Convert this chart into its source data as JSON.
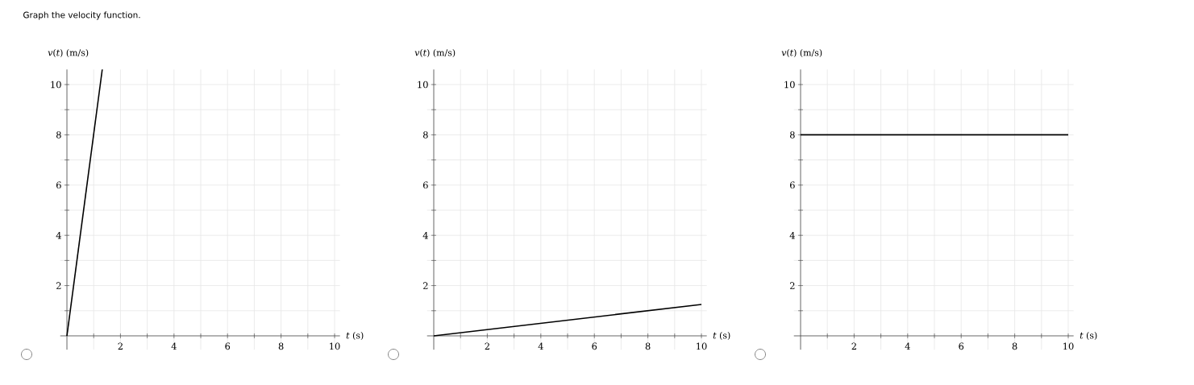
{
  "chart_data": [
    {
      "type": "line",
      "title": "Graph the velocity function.",
      "xlabel": "*t* (s)",
      "ylabel": "*v*(*t*) (m/s)",
      "x": [
        0,
        1.32
      ],
      "values": [
        0,
        10.6
      ],
      "color": "#000000",
      "xlim": [
        -0.25,
        10.2
      ],
      "ylim": [
        -0.55,
        10.6
      ],
      "xticks": [
        {
          "value": 1,
          "label": null
        },
        2,
        {
          "value": 3,
          "label": null
        },
        4,
        {
          "value": 5,
          "label": null
        },
        6,
        {
          "value": 7,
          "label": null
        },
        8,
        {
          "value": 9,
          "label": null
        },
        10
      ],
      "yticks": [
        {
          "value": 1,
          "label": null
        },
        2,
        {
          "value": 3,
          "label": null
        },
        4,
        {
          "value": 5,
          "label": null
        },
        6,
        {
          "value": 7,
          "label": null
        },
        8,
        {
          "value": 9,
          "label": null
        },
        10
      ],
      "grid": true
    },
    {
      "type": "line",
      "xlabel": "*t* (s)",
      "ylabel": "*v*(*t*) (m/s)",
      "x": [
        0,
        10
      ],
      "values": [
        0,
        1.25
      ],
      "color": "#000000",
      "xlim": [
        -0.25,
        10.2
      ],
      "ylim": [
        -0.55,
        10.6
      ],
      "xticks": [
        {
          "value": 1,
          "label": null
        },
        2,
        {
          "value": 3,
          "label": null
        },
        4,
        {
          "value": 5,
          "label": null
        },
        6,
        {
          "value": 7,
          "label": null
        },
        8,
        {
          "value": 9,
          "label": null
        },
        10
      ],
      "yticks": [
        {
          "value": 1,
          "label": null
        },
        2,
        {
          "value": 3,
          "label": null
        },
        4,
        {
          "value": 5,
          "label": null
        },
        6,
        {
          "value": 7,
          "label": null
        },
        8,
        {
          "value": 9,
          "label": null
        },
        10
      ],
      "grid": true
    },
    {
      "type": "line",
      "xlabel": "*t* (s)",
      "ylabel": "*v*(*t*) (m/s)",
      "x": [
        0,
        10
      ],
      "values": [
        8,
        8
      ],
      "color": "#000000",
      "xlim": [
        -0.25,
        10.2
      ],
      "ylim": [
        -0.55,
        10.6
      ],
      "xticks": [
        {
          "value": 1,
          "label": null
        },
        2,
        {
          "value": 3,
          "label": null
        },
        4,
        {
          "value": 5,
          "label": null
        },
        6,
        {
          "value": 7,
          "label": null
        },
        8,
        {
          "value": 9,
          "label": null
        },
        10
      ],
      "yticks": [
        {
          "value": 1,
          "label": null
        },
        2,
        {
          "value": 3,
          "label": null
        },
        4,
        {
          "value": 5,
          "label": null
        },
        6,
        {
          "value": 7,
          "label": null
        },
        8,
        {
          "value": 9,
          "label": null
        },
        10
      ],
      "grid": true
    }
  ]
}
